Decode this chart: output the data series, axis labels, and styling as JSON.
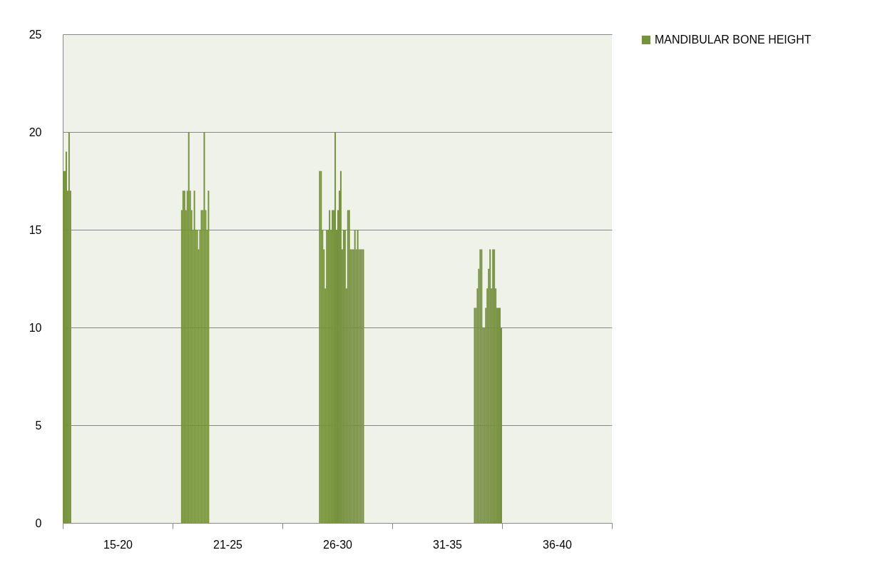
{
  "chart_data": {
    "type": "bar",
    "categories": [
      "15-20",
      "21-25",
      "26-30",
      "31-35",
      "36-40"
    ],
    "ylim": [
      0,
      25
    ],
    "yticks": [
      0,
      5,
      10,
      15,
      20,
      25
    ],
    "grid": "y",
    "legend": "top right",
    "series": [
      {
        "name": "MANDIBULAR BONE HEIGHT",
        "color": "#76923c",
        "values": [
          18,
          null,
          null,
          null,
          null
        ]
      },
      {
        "color": "#76923c",
        "values": [
          18,
          null,
          null,
          null,
          null
        ]
      },
      {
        "color": "#76923c",
        "values": [
          19,
          null,
          null,
          null,
          null
        ]
      },
      {
        "color": "#76923c",
        "values": [
          17,
          null,
          null,
          null,
          null
        ]
      },
      {
        "color": "#76923c",
        "values": [
          20,
          null,
          null,
          null,
          null
        ]
      },
      {
        "color": "#76923c",
        "values": [
          17,
          null,
          null,
          null,
          null
        ]
      },
      {
        "color": "#76923c",
        "values": [
          null,
          16,
          null,
          null,
          null
        ]
      },
      {
        "color": "#76923c",
        "values": [
          null,
          17,
          null,
          null,
          null
        ]
      },
      {
        "color": "#76923c",
        "values": [
          null,
          17,
          null,
          null,
          null
        ]
      },
      {
        "color": "#76923c",
        "values": [
          null,
          16,
          null,
          null,
          null
        ]
      },
      {
        "color": "#76923c",
        "values": [
          null,
          17,
          null,
          null,
          null
        ]
      },
      {
        "color": "#76923c",
        "values": [
          null,
          20,
          null,
          null,
          null
        ]
      },
      {
        "color": "#76923c",
        "values": [
          null,
          17,
          null,
          null,
          null
        ]
      },
      {
        "color": "#76923c",
        "values": [
          null,
          16,
          null,
          null,
          null
        ]
      },
      {
        "color": "#76923c",
        "values": [
          null,
          15,
          null,
          null,
          null
        ]
      },
      {
        "color": "#76923c",
        "values": [
          null,
          17,
          null,
          null,
          null
        ]
      },
      {
        "color": "#76923c",
        "values": [
          null,
          15,
          null,
          null,
          null
        ]
      },
      {
        "color": "#76923c",
        "values": [
          null,
          15,
          null,
          null,
          null
        ]
      },
      {
        "color": "#76923c",
        "values": [
          null,
          14,
          null,
          null,
          null
        ]
      },
      {
        "color": "#76923c",
        "values": [
          null,
          15,
          null,
          null,
          null
        ]
      },
      {
        "color": "#76923c",
        "values": [
          null,
          16,
          null,
          null,
          null
        ]
      },
      {
        "color": "#76923c",
        "values": [
          null,
          16,
          null,
          null,
          null
        ]
      },
      {
        "color": "#76923c",
        "values": [
          null,
          20,
          null,
          null,
          null
        ]
      },
      {
        "color": "#76923c",
        "values": [
          null,
          16,
          null,
          null,
          null
        ]
      },
      {
        "color": "#76923c",
        "values": [
          null,
          15,
          null,
          null,
          null
        ]
      },
      {
        "color": "#76923c",
        "values": [
          null,
          17,
          null,
          null,
          null
        ]
      },
      {
        "color": "#76923c",
        "values": [
          null,
          null,
          18,
          null,
          null
        ]
      },
      {
        "color": "#76923c",
        "values": [
          null,
          null,
          18,
          null,
          null
        ]
      },
      {
        "color": "#76923c",
        "values": [
          null,
          null,
          15,
          null,
          null
        ]
      },
      {
        "color": "#76923c",
        "values": [
          null,
          null,
          14,
          null,
          null
        ]
      },
      {
        "color": "#76923c",
        "values": [
          null,
          null,
          12,
          null,
          null
        ]
      },
      {
        "color": "#76923c",
        "values": [
          null,
          null,
          15,
          null,
          null
        ]
      },
      {
        "color": "#76923c",
        "values": [
          null,
          null,
          15,
          null,
          null
        ]
      },
      {
        "color": "#76923c",
        "values": [
          null,
          null,
          16,
          null,
          null
        ]
      },
      {
        "color": "#76923c",
        "values": [
          null,
          null,
          15,
          null,
          null
        ]
      },
      {
        "color": "#76923c",
        "values": [
          null,
          null,
          16,
          null,
          null
        ]
      },
      {
        "color": "#76923c",
        "values": [
          null,
          null,
          16,
          null,
          null
        ]
      },
      {
        "color": "#76923c",
        "values": [
          null,
          null,
          20,
          null,
          null
        ]
      },
      {
        "color": "#76923c",
        "values": [
          null,
          null,
          15,
          null,
          null
        ]
      },
      {
        "color": "#76923c",
        "values": [
          null,
          null,
          16,
          null,
          null
        ]
      },
      {
        "color": "#76923c",
        "values": [
          null,
          null,
          17,
          null,
          null
        ]
      },
      {
        "color": "#76923c",
        "values": [
          null,
          null,
          18,
          null,
          null
        ]
      },
      {
        "color": "#76923c",
        "values": [
          null,
          null,
          14,
          null,
          null
        ]
      },
      {
        "color": "#76923c",
        "values": [
          null,
          null,
          15,
          null,
          null
        ]
      },
      {
        "color": "#76923c",
        "values": [
          null,
          null,
          15,
          null,
          null
        ]
      },
      {
        "color": "#76923c",
        "values": [
          null,
          null,
          12,
          null,
          null
        ]
      },
      {
        "color": "#76923c",
        "values": [
          null,
          null,
          16,
          null,
          null
        ]
      },
      {
        "color": "#76923c",
        "values": [
          null,
          null,
          16,
          null,
          null
        ]
      },
      {
        "color": "#76923c",
        "values": [
          null,
          null,
          14,
          null,
          null
        ]
      },
      {
        "color": "#76923c",
        "values": [
          null,
          null,
          14,
          null,
          null
        ]
      },
      {
        "color": "#76923c",
        "values": [
          null,
          null,
          14,
          null,
          null
        ]
      },
      {
        "color": "#76923c",
        "values": [
          null,
          null,
          15,
          null,
          null
        ]
      },
      {
        "color": "#76923c",
        "values": [
          null,
          null,
          14,
          null,
          null
        ]
      },
      {
        "color": "#76923c",
        "values": [
          null,
          null,
          15,
          null,
          null
        ]
      },
      {
        "color": "#76923c",
        "values": [
          null,
          null,
          14,
          null,
          null
        ]
      },
      {
        "color": "#76923c",
        "values": [
          null,
          null,
          14,
          null,
          null
        ]
      },
      {
        "color": "#76923c",
        "values": [
          null,
          null,
          14,
          null,
          null
        ]
      },
      {
        "color": "#76923c",
        "values": [
          null,
          null,
          14,
          null,
          null
        ]
      },
      {
        "color": "#76923c",
        "values": [
          null,
          null,
          null,
          11,
          null
        ]
      },
      {
        "color": "#76923c",
        "values": [
          null,
          null,
          null,
          11,
          null
        ]
      },
      {
        "color": "#76923c",
        "values": [
          null,
          null,
          null,
          12,
          null
        ]
      },
      {
        "color": "#76923c",
        "values": [
          null,
          null,
          null,
          13,
          null
        ]
      },
      {
        "color": "#76923c",
        "values": [
          null,
          null,
          null,
          14,
          null
        ]
      },
      {
        "color": "#76923c",
        "values": [
          null,
          null,
          null,
          14,
          null
        ]
      },
      {
        "color": "#76923c",
        "values": [
          null,
          null,
          null,
          10,
          null
        ]
      },
      {
        "color": "#76923c",
        "values": [
          null,
          null,
          null,
          10,
          null
        ]
      },
      {
        "color": "#76923c",
        "values": [
          null,
          null,
          null,
          11,
          null
        ]
      },
      {
        "color": "#76923c",
        "values": [
          null,
          null,
          null,
          12,
          null
        ]
      },
      {
        "color": "#76923c",
        "values": [
          null,
          null,
          null,
          13,
          null
        ]
      },
      {
        "color": "#76923c",
        "values": [
          null,
          null,
          null,
          14,
          null
        ]
      },
      {
        "color": "#76923c",
        "values": [
          null,
          null,
          null,
          12,
          null
        ]
      },
      {
        "color": "#76923c",
        "values": [
          null,
          null,
          null,
          14,
          null
        ]
      },
      {
        "color": "#76923c",
        "values": [
          null,
          null,
          null,
          14,
          null
        ]
      },
      {
        "color": "#76923c",
        "values": [
          null,
          null,
          null,
          12,
          null
        ]
      },
      {
        "color": "#76923c",
        "values": [
          null,
          null,
          null,
          11,
          null
        ]
      },
      {
        "color": "#76923c",
        "values": [
          null,
          null,
          null,
          11,
          null
        ]
      },
      {
        "color": "#76923c",
        "values": [
          null,
          null,
          null,
          11,
          null
        ]
      },
      {
        "color": "#76923c",
        "values": [
          null,
          null,
          null,
          10,
          null
        ]
      }
    ]
  }
}
